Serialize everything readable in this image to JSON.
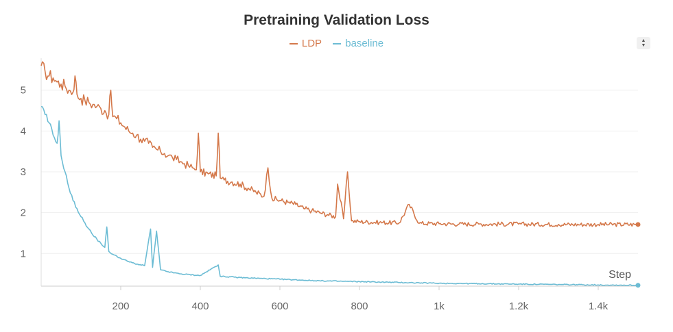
{
  "chart_data": {
    "type": "line",
    "title": "Pretraining Validation Loss",
    "xlabel": "Step",
    "ylabel": "",
    "xlim": [
      0,
      1500
    ],
    "ylim": [
      0.2,
      5.7
    ],
    "x_ticks": [
      {
        "value": 200,
        "label": "200"
      },
      {
        "value": 400,
        "label": "400"
      },
      {
        "value": 600,
        "label": "600"
      },
      {
        "value": 800,
        "label": "800"
      },
      {
        "value": 1000,
        "label": "1k"
      },
      {
        "value": 1200,
        "label": "1.2k"
      },
      {
        "value": 1400,
        "label": "1.4k"
      }
    ],
    "y_ticks": [
      {
        "value": 1,
        "label": "1"
      },
      {
        "value": 2,
        "label": "2"
      },
      {
        "value": 3,
        "label": "3"
      },
      {
        "value": 4,
        "label": "4"
      },
      {
        "value": 5,
        "label": "5"
      }
    ],
    "grid": true,
    "legend_position": "top-center",
    "series": [
      {
        "name": "LDP",
        "color": "#D4784A",
        "points": [
          [
            0,
            5.6
          ],
          [
            10,
            5.45
          ],
          [
            20,
            5.35
          ],
          [
            30,
            5.3
          ],
          [
            40,
            5.2
          ],
          [
            50,
            5.15
          ],
          [
            60,
            5.1
          ],
          [
            70,
            5.0
          ],
          [
            80,
            4.95
          ],
          [
            85,
            5.35
          ],
          [
            90,
            4.9
          ],
          [
            100,
            4.8
          ],
          [
            110,
            4.75
          ],
          [
            120,
            4.7
          ],
          [
            130,
            4.65
          ],
          [
            140,
            4.6
          ],
          [
            150,
            4.55
          ],
          [
            160,
            4.5
          ],
          [
            170,
            4.4
          ],
          [
            175,
            5.0
          ],
          [
            180,
            4.35
          ],
          [
            190,
            4.3
          ],
          [
            200,
            4.2
          ],
          [
            210,
            4.1
          ],
          [
            220,
            4.0
          ],
          [
            230,
            3.95
          ],
          [
            240,
            3.9
          ],
          [
            250,
            3.8
          ],
          [
            260,
            3.75
          ],
          [
            270,
            3.7
          ],
          [
            280,
            3.6
          ],
          [
            290,
            3.55
          ],
          [
            300,
            3.5
          ],
          [
            310,
            3.45
          ],
          [
            320,
            3.4
          ],
          [
            330,
            3.35
          ],
          [
            340,
            3.3
          ],
          [
            350,
            3.25
          ],
          [
            360,
            3.2
          ],
          [
            370,
            3.15
          ],
          [
            380,
            3.1
          ],
          [
            390,
            3.05
          ],
          [
            395,
            3.95
          ],
          [
            400,
            3.0
          ],
          [
            420,
            2.95
          ],
          [
            440,
            2.9
          ],
          [
            445,
            3.95
          ],
          [
            450,
            2.85
          ],
          [
            460,
            2.8
          ],
          [
            480,
            2.75
          ],
          [
            500,
            2.7
          ],
          [
            520,
            2.6
          ],
          [
            540,
            2.5
          ],
          [
            560,
            2.4
          ],
          [
            570,
            3.1
          ],
          [
            580,
            2.35
          ],
          [
            600,
            2.3
          ],
          [
            620,
            2.25
          ],
          [
            640,
            2.2
          ],
          [
            660,
            2.1
          ],
          [
            680,
            2.05
          ],
          [
            700,
            2.0
          ],
          [
            720,
            1.95
          ],
          [
            740,
            1.9
          ],
          [
            745,
            2.7
          ],
          [
            760,
            1.85
          ],
          [
            770,
            3.0
          ],
          [
            780,
            1.8
          ],
          [
            800,
            1.78
          ],
          [
            850,
            1.76
          ],
          [
            900,
            1.75
          ],
          [
            925,
            2.2
          ],
          [
            950,
            1.74
          ],
          [
            1000,
            1.73
          ],
          [
            1050,
            1.72
          ],
          [
            1100,
            1.72
          ],
          [
            1200,
            1.72
          ],
          [
            1300,
            1.71
          ],
          [
            1400,
            1.71
          ],
          [
            1500,
            1.71
          ]
        ]
      },
      {
        "name": "baseline",
        "color": "#6CBCD4",
        "points": [
          [
            0,
            4.6
          ],
          [
            10,
            4.4
          ],
          [
            20,
            4.2
          ],
          [
            30,
            3.9
          ],
          [
            40,
            3.7
          ],
          [
            45,
            4.25
          ],
          [
            50,
            3.4
          ],
          [
            60,
            3.0
          ],
          [
            70,
            2.6
          ],
          [
            80,
            2.3
          ],
          [
            90,
            2.1
          ],
          [
            100,
            1.9
          ],
          [
            110,
            1.75
          ],
          [
            120,
            1.6
          ],
          [
            130,
            1.45
          ],
          [
            140,
            1.35
          ],
          [
            150,
            1.25
          ],
          [
            160,
            1.15
          ],
          [
            165,
            1.65
          ],
          [
            170,
            1.05
          ],
          [
            180,
            0.98
          ],
          [
            200,
            0.88
          ],
          [
            220,
            0.8
          ],
          [
            240,
            0.74
          ],
          [
            260,
            0.7
          ],
          [
            275,
            1.6
          ],
          [
            280,
            0.66
          ],
          [
            290,
            1.55
          ],
          [
            300,
            0.6
          ],
          [
            320,
            0.55
          ],
          [
            350,
            0.5
          ],
          [
            400,
            0.46
          ],
          [
            445,
            0.72
          ],
          [
            450,
            0.44
          ],
          [
            500,
            0.41
          ],
          [
            550,
            0.39
          ],
          [
            600,
            0.37
          ],
          [
            650,
            0.35
          ],
          [
            700,
            0.33
          ],
          [
            750,
            0.32
          ],
          [
            800,
            0.31
          ],
          [
            850,
            0.3
          ],
          [
            900,
            0.29
          ],
          [
            950,
            0.28
          ],
          [
            1000,
            0.27
          ],
          [
            1100,
            0.26
          ],
          [
            1200,
            0.25
          ],
          [
            1300,
            0.24
          ],
          [
            1400,
            0.23
          ],
          [
            1500,
            0.22
          ]
        ]
      }
    ]
  }
}
